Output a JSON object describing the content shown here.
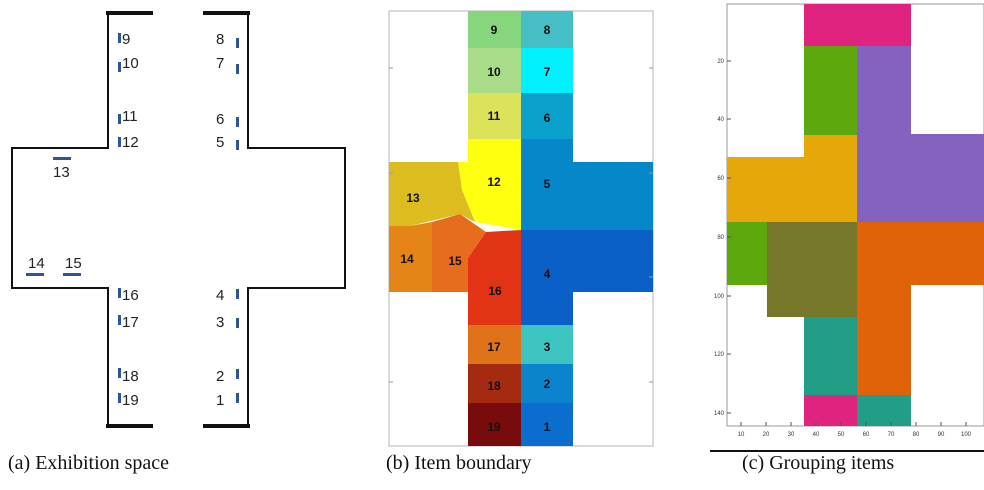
{
  "panel_a": {
    "caption": "(a) Exhibition space",
    "labels": [
      "9",
      "8",
      "10",
      "7",
      "11",
      "6",
      "12",
      "5",
      "13",
      "14",
      "15",
      "16",
      "4",
      "17",
      "3",
      "18",
      "2",
      "19",
      "1"
    ]
  },
  "panel_b": {
    "caption": "(b) Item boundary",
    "cells": [
      {
        "label": "9",
        "color": "#86d67e"
      },
      {
        "label": "8",
        "color": "#45bfc5"
      },
      {
        "label": "10",
        "color": "#a8dc88"
      },
      {
        "label": "7",
        "color": "#00f0ff"
      },
      {
        "label": "11",
        "color": "#dce25a"
      },
      {
        "label": "6",
        "color": "#0aa2cc"
      },
      {
        "label": "12",
        "color": "#ffff10"
      },
      {
        "label": "5",
        "color": "#0587c9"
      },
      {
        "label": "13",
        "color": "#dcbc1e"
      },
      {
        "label": "14",
        "color": "#e58518"
      },
      {
        "label": "15",
        "color": "#e86c1e"
      },
      {
        "label": "16",
        "color": "#e23414"
      },
      {
        "label": "4",
        "color": "#0b60c7"
      },
      {
        "label": "17",
        "color": "#e0721a"
      },
      {
        "label": "3",
        "color": "#3cc4c0"
      },
      {
        "label": "18",
        "color": "#a42a10"
      },
      {
        "label": "2",
        "color": "#0b84cd"
      },
      {
        "label": "19",
        "color": "#780c0c"
      },
      {
        "label": "1",
        "color": "#0b6ecf"
      }
    ]
  },
  "panel_c": {
    "caption": "(c) Grouping items",
    "y_ticks": [
      "20",
      "40",
      "60",
      "80",
      "100",
      "120",
      "140"
    ],
    "x_ticks": [
      "10",
      "20",
      "30",
      "40",
      "50",
      "60",
      "70",
      "80",
      "90",
      "100"
    ],
    "group_colors": [
      "#e0237e",
      "#5ea80f",
      "#8462c0",
      "#e5a70a",
      "#e06309",
      "#77772a",
      "#239e86"
    ]
  }
}
